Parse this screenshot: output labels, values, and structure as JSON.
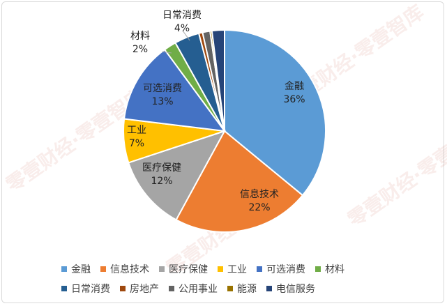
{
  "chart_data": {
    "type": "pie",
    "title": "",
    "slices": [
      {
        "name": "金融",
        "value": 36,
        "label": "36%",
        "color": "#5b9bd5"
      },
      {
        "name": "信息技术",
        "value": 22,
        "label": "22%",
        "color": "#ed7d31"
      },
      {
        "name": "医疗保健",
        "value": 12,
        "label": "12%",
        "color": "#a5a5a5"
      },
      {
        "name": "工业",
        "value": 7,
        "label": "7%",
        "color": "#ffc000"
      },
      {
        "name": "可选消费",
        "value": 13,
        "label": "13%",
        "color": "#4472c4"
      },
      {
        "name": "材料",
        "value": 2,
        "label": "2%",
        "color": "#70ad47"
      },
      {
        "name": "日常消费",
        "value": 4,
        "label": "4%",
        "color": "#255e91"
      },
      {
        "name": "房地产",
        "value": 0.6,
        "label": "",
        "color": "#9e480e"
      },
      {
        "name": "公用事业",
        "value": 1.2,
        "label": "",
        "color": "#636363"
      },
      {
        "name": "能源",
        "value": 0.3,
        "label": "",
        "color": "#997300"
      },
      {
        "name": "电信服务",
        "value": 2,
        "label": "",
        "color": "#264478"
      }
    ],
    "legend_position": "bottom"
  },
  "watermark_text": "零壹财经·零壹智库"
}
